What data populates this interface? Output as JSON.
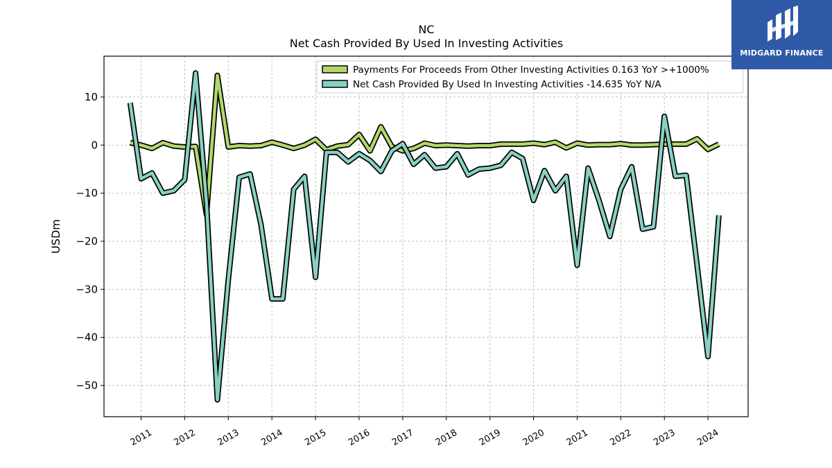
{
  "chart_data": {
    "type": "line",
    "title": "NC",
    "subtitle": "Net Cash Provided By Used In Investing Activities",
    "ylabel": "USDm",
    "xlabel": "",
    "ylim": [
      -56.5,
      18.5
    ],
    "xlim": [
      2010.15,
      2024.92
    ],
    "yticks": [
      10,
      0,
      -10,
      -20,
      -30,
      -40,
      -50
    ],
    "ytick_labels": [
      "10",
      "0",
      "−10",
      "−20",
      "−30",
      "−40",
      "−50"
    ],
    "xticks": [
      "2011",
      "2012",
      "2013",
      "2014",
      "2015",
      "2016",
      "2017",
      "2018",
      "2019",
      "2020",
      "2021",
      "2022",
      "2023",
      "2024"
    ],
    "grid": true,
    "legend_position": "top-right",
    "series": [
      {
        "name": "Payments For Proceeds From Other Investing Activities  0.163 YoY >+1000%",
        "color": "#b2d96a",
        "x": [
          2010.75,
          2011.0,
          2011.25,
          2011.5,
          2011.75,
          2012.0,
          2012.25,
          2012.5,
          2012.75,
          2013.0,
          2013.25,
          2013.5,
          2013.75,
          2014.0,
          2014.25,
          2014.5,
          2014.75,
          2015.0,
          2015.25,
          2015.5,
          2015.75,
          2016.0,
          2016.25,
          2016.5,
          2016.75,
          2017.0,
          2017.25,
          2017.5,
          2017.75,
          2018.0,
          2018.25,
          2018.5,
          2018.75,
          2019.0,
          2019.25,
          2019.5,
          2019.75,
          2020.0,
          2020.25,
          2020.5,
          2020.75,
          2021.0,
          2021.25,
          2021.5,
          2021.75,
          2022.0,
          2022.25,
          2022.5,
          2022.75,
          2023.0,
          2023.25,
          2023.5,
          2023.75,
          2024.0,
          2024.25
        ],
        "values": [
          0.5,
          0,
          -0.7,
          0.5,
          -0.2,
          -0.4,
          -0.3,
          -14.5,
          14.5,
          -0.4,
          -0.1,
          -0.2,
          -0.1,
          0.6,
          0,
          -0.7,
          0,
          1.2,
          -1,
          -0.2,
          0.1,
          2.2,
          -1.2,
          3.8,
          -0.3,
          -1.2,
          -0.7,
          0.4,
          -0.1,
          0,
          -0.1,
          -0.2,
          -0.1,
          -0.1,
          0.2,
          0.2,
          0.2,
          0.4,
          0.1,
          0.6,
          -0.6,
          0.4,
          0,
          0.1,
          0.1,
          0.3,
          0,
          0,
          0.1,
          0.2,
          0.2,
          0.2,
          1.3,
          -0.9,
          0.2
        ]
      },
      {
        "name": "Net Cash Provided By Used In Investing Activities  -14.635 YoY N/A",
        "color": "#88d1c3",
        "x": [
          2010.75,
          2011.0,
          2011.25,
          2011.5,
          2011.75,
          2012.0,
          2012.25,
          2012.5,
          2012.75,
          2013.0,
          2013.25,
          2013.5,
          2013.75,
          2014.0,
          2014.25,
          2014.5,
          2014.75,
          2015.0,
          2015.25,
          2015.5,
          2015.75,
          2016.0,
          2016.25,
          2016.5,
          2016.75,
          2017.0,
          2017.25,
          2017.5,
          2017.75,
          2018.0,
          2018.25,
          2018.5,
          2018.75,
          2019.0,
          2019.25,
          2019.5,
          2019.75,
          2020.0,
          2020.25,
          2020.5,
          2020.75,
          2021.0,
          2021.25,
          2021.5,
          2021.75,
          2022.0,
          2022.25,
          2022.5,
          2022.75,
          2023.0,
          2023.25,
          2023.5,
          2023.75,
          2024.0,
          2024.25
        ],
        "values": [
          8.8,
          -7,
          -5.8,
          -10,
          -9.5,
          -7.2,
          15,
          -12,
          -53,
          -28,
          -6.7,
          -6,
          -16.5,
          -32,
          -32,
          -9.2,
          -6.5,
          -27.5,
          -1.5,
          -1.5,
          -3.5,
          -1.8,
          -3.2,
          -5.5,
          -1.2,
          0.3,
          -4,
          -2,
          -4.8,
          -4.5,
          -1.8,
          -6.2,
          -5,
          -4.8,
          -4.2,
          -1.5,
          -2.8,
          -11.5,
          -5.3,
          -9.5,
          -6.5,
          -25,
          -4.8,
          -11.5,
          -19,
          -9.2,
          -4.5,
          -17.5,
          -17,
          6,
          -6.5,
          -6.3,
          -25,
          -44,
          -14.6
        ]
      }
    ]
  },
  "brand": {
    "name": "MIDGARD FINANCE",
    "color": "#2f5aa8"
  }
}
